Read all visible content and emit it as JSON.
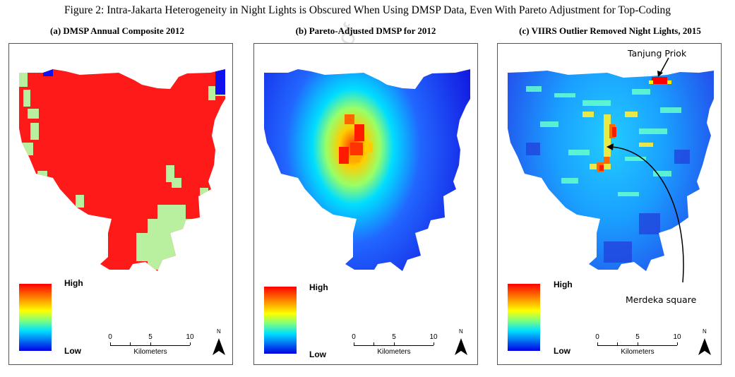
{
  "figure_title": "Figure 2: Intra-Jakarta Heterogeneity in Night Lights is Obscured When Using DMSP Data, Even With Pareto Adjustment for Top-Coding",
  "watermark": "Journal Pre-proof",
  "panels": [
    {
      "title": "(a) DMSP Annual Composite 2012",
      "legend_high": "High",
      "legend_low": "Low",
      "scale_ticks": [
        "0",
        "5",
        "10"
      ],
      "scale_unit": "Kilometers",
      "north": "N"
    },
    {
      "title": "(b) Pareto-Adjusted DMSP for 2012",
      "legend_high": "High",
      "legend_low": "Low",
      "scale_ticks": [
        "0",
        "5",
        "10"
      ],
      "scale_unit": "Kilometers",
      "north": "N"
    },
    {
      "title": "(c) VIIRS Outlier Removed Night Lights, 2015",
      "legend_high": "High",
      "legend_low": "Low",
      "scale_ticks": [
        "0",
        "5",
        "10"
      ],
      "scale_unit": "Kilometers",
      "north": "N",
      "annotations": {
        "tanjung_priok": "Tanjung Priok",
        "merdeka_square": "Merdeka square"
      }
    }
  ],
  "colors": {
    "high": "#ff0000",
    "low": "#1010ee",
    "dmsp_fill": "#ff1a1a",
    "dmsp_light": "#b8f0a0"
  }
}
